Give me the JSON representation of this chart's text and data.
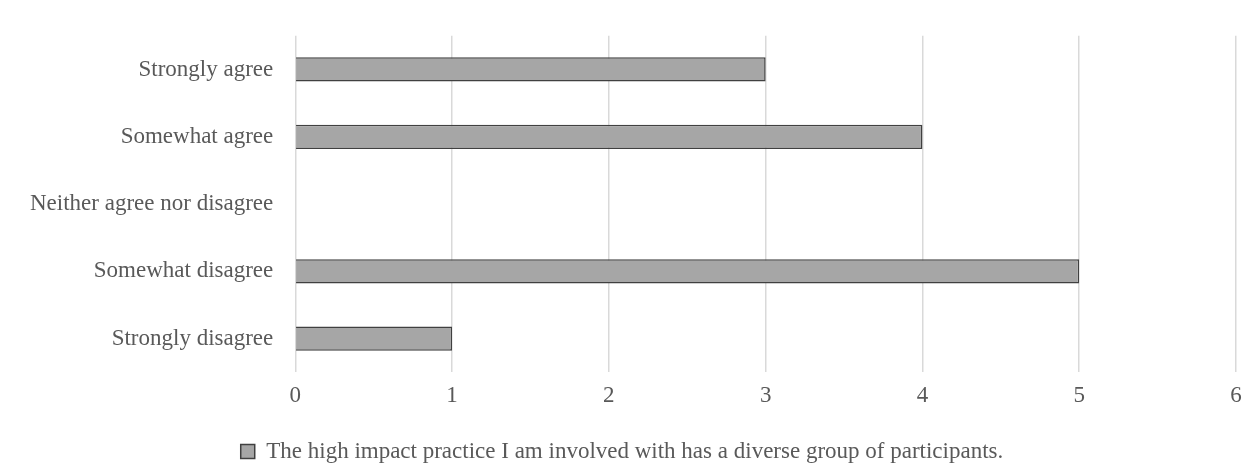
{
  "chart_data": {
    "type": "bar",
    "orientation": "horizontal",
    "categories": [
      "Strongly agree",
      "Somewhat agree",
      "Neither agree nor disagree",
      "Somewhat disagree",
      "Strongly disagree"
    ],
    "series": [
      {
        "name": "The high impact practice I am involved with has a diverse group of participants.",
        "color": "#a6a6a6",
        "values": [
          3,
          4,
          0,
          5,
          1
        ]
      }
    ],
    "xlim": [
      0,
      6
    ],
    "xticks": [
      0,
      1,
      2,
      3,
      4,
      5,
      6
    ],
    "grid": "x",
    "legend": "bottom"
  }
}
